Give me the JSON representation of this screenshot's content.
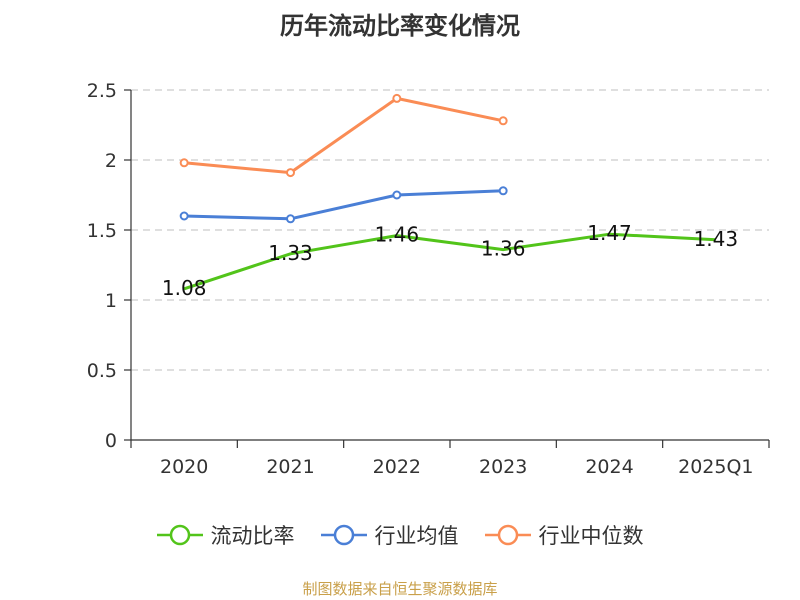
{
  "chart_data": {
    "type": "line",
    "title": "历年流动比率变化情况",
    "categories": [
      "2020",
      "2021",
      "2022",
      "2023",
      "2024",
      "2025Q1"
    ],
    "ylim": [
      0,
      2.5
    ],
    "yticks": [
      "0",
      "0.5",
      "1",
      "1.5",
      "2",
      "2.5"
    ],
    "grid": true,
    "legend_position": "bottom",
    "series": [
      {
        "name": "流动比率",
        "color": "#52c41a",
        "values": [
          1.08,
          1.33,
          1.46,
          1.36,
          1.47,
          1.43
        ],
        "labels": [
          "1.08",
          "1.33",
          "1.46",
          "1.36",
          "1.47",
          "1.43"
        ],
        "markers": false
      },
      {
        "name": "行业均值",
        "color": "#4a7fd6",
        "values": [
          1.6,
          1.58,
          1.75,
          1.78,
          null,
          null
        ],
        "markers": true
      },
      {
        "name": "行业中位数",
        "color": "#fa8c55",
        "values": [
          1.98,
          1.91,
          2.44,
          2.28,
          null,
          null
        ],
        "markers": true
      }
    ]
  },
  "source": "制图数据来自恒生聚源数据库"
}
